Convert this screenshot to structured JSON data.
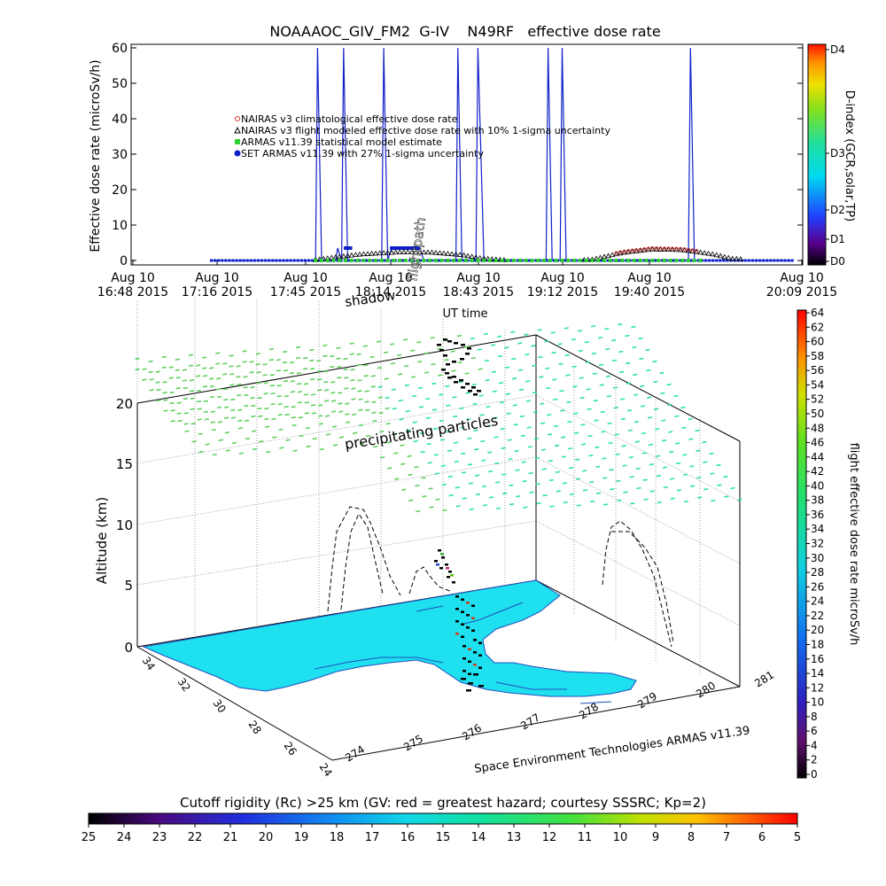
{
  "chart_data": [
    {
      "type": "line",
      "title": "NOAAAOC_GIV_FM2  G-IV    N49RF   effective dose rate",
      "xlabel": "UT time",
      "ylabel": "Effective dose rate  (microSv/h)",
      "ylim": [
        0,
        60
      ],
      "yticks": [
        "0",
        "10",
        "20",
        "30",
        "40",
        "50",
        "60"
      ],
      "xticks": [
        [
          "Aug 10",
          "16:48 2015"
        ],
        [
          "Aug 10",
          "17:16 2015"
        ],
        [
          "Aug 10",
          "17:45 2015"
        ],
        [
          "Aug 10",
          "18:14 2015"
        ],
        [
          "Aug 10",
          "18:43 2015"
        ],
        [
          "Aug 10",
          "19:12 2015"
        ],
        [
          "Aug 10",
          "19:40 2015"
        ],
        [
          "Aug 10",
          "20:09 2015"
        ]
      ],
      "xlim_hours": [
        16.8,
        20.15
      ],
      "legend_position": "center-left",
      "legend": [
        {
          "label": "NAIRAS v3 climatological effective dose rate",
          "color": "#d83030",
          "marker": "circle"
        },
        {
          "label": "NAIRAS v3 flight modeled effective dose rate with 10% 1-sigma uncertainty",
          "color": "#000000",
          "marker": "triangle"
        },
        {
          "label": "ARMAS v11.39 statistical model estimate",
          "color": "#30d030",
          "marker": "square"
        },
        {
          "label": "SET ARMAS v11.39 with 27% 1-sigma uncertainty",
          "color": "#1020c8",
          "marker": "dot"
        }
      ],
      "right_axis": {
        "label": "D-index (GCR,solar,TP)",
        "ticks": [
          "D0",
          "D1",
          "D2",
          "D3",
          "D4"
        ]
      },
      "series": [
        {
          "name": "NAIRAS v3 flight modeled effective dose rate with 10% 1-sigma uncertainty",
          "x": [
            17.2,
            17.7,
            17.8,
            17.95,
            18.15,
            18.3,
            18.45,
            18.55,
            18.7,
            18.9,
            19.0,
            19.1,
            19.25,
            19.4,
            19.55,
            19.7,
            19.8,
            20.1
          ],
          "y": [
            0,
            0,
            0.8,
            1.8,
            2.4,
            2.3,
            1.6,
            0.6,
            0,
            0,
            0,
            0.3,
            2.2,
            3.2,
            3.0,
            1.8,
            0.5,
            0
          ]
        },
        {
          "name": "SET ARMAS v11.39 with 27% 1-sigma uncertainty",
          "x": [
            17.2,
            17.72,
            17.73,
            17.75,
            17.82,
            17.83,
            17.85,
            17.86,
            17.88,
            18.05,
            18.06,
            18.08,
            18.1,
            18.12,
            18.22,
            18.24,
            18.26,
            18.42,
            18.43,
            18.45,
            18.52,
            18.53,
            18.56,
            18.87,
            18.88,
            18.9,
            18.94,
            18.95,
            18.97,
            19.58,
            19.59,
            19.61,
            20.1
          ],
          "y": [
            0,
            0,
            60,
            0,
            0,
            3.5,
            0,
            60,
            0,
            0,
            60,
            0,
            3.5,
            3.5,
            3.5,
            3.5,
            0,
            0,
            60,
            0,
            0,
            60,
            0,
            0,
            60,
            0,
            0,
            60,
            0,
            0,
            60,
            0,
            0
          ]
        },
        {
          "name": "ARMAS v11.39 statistical model estimate",
          "x": [
            17.75,
            17.95,
            18.15,
            18.4,
            18.65,
            18.9,
            19.1,
            19.4,
            19.6
          ],
          "y": [
            0,
            0,
            0,
            0,
            0,
            0,
            0,
            0,
            0
          ]
        }
      ]
    },
    {
      "type": "scatter",
      "zlabel": "Altitude (km)",
      "zticks": [
        "0",
        "5",
        "10",
        "15",
        "20"
      ],
      "lat_ticks": [
        "34",
        "32",
        "30",
        "28",
        "26",
        "24"
      ],
      "lon_ticks": [
        "274",
        "275",
        "276",
        "277",
        "278",
        "279",
        "280",
        "281"
      ],
      "annotations": {
        "shadow": "shadow",
        "flightpath": "flightpath",
        "precipitating": "precipitating particles",
        "credit": "Space Environment Technologies ARMAS v11.39"
      },
      "colorbar": {
        "label": "flight effective dose rate microSv/h",
        "ticks": [
          "0",
          "2",
          "4",
          "6",
          "8",
          "10",
          "12",
          "14",
          "16",
          "18",
          "20",
          "22",
          "24",
          "26",
          "28",
          "30",
          "32",
          "34",
          "36",
          "38",
          "40",
          "42",
          "44",
          "46",
          "48",
          "50",
          "52",
          "54",
          "56",
          "58",
          "60",
          "62",
          "64"
        ]
      }
    }
  ],
  "bottom_colorbar": {
    "title": "Cutoff rigidity (Rc) >25 km (GV: red = greatest hazard; courtesy SSSRC; Kp=2)",
    "ticks": [
      "25",
      "24",
      "23",
      "22",
      "21",
      "20",
      "19",
      "18",
      "17",
      "16",
      "15",
      "14",
      "13",
      "12",
      "11",
      "10",
      "9",
      "8",
      "7",
      "6",
      "5"
    ]
  },
  "colors": {
    "ocean": "#1ee0ee",
    "land_outline": "#2050c0",
    "flight_blue": "#1020c8",
    "particle_green": "#60d060",
    "particle_cyan": "#30e0b0"
  }
}
